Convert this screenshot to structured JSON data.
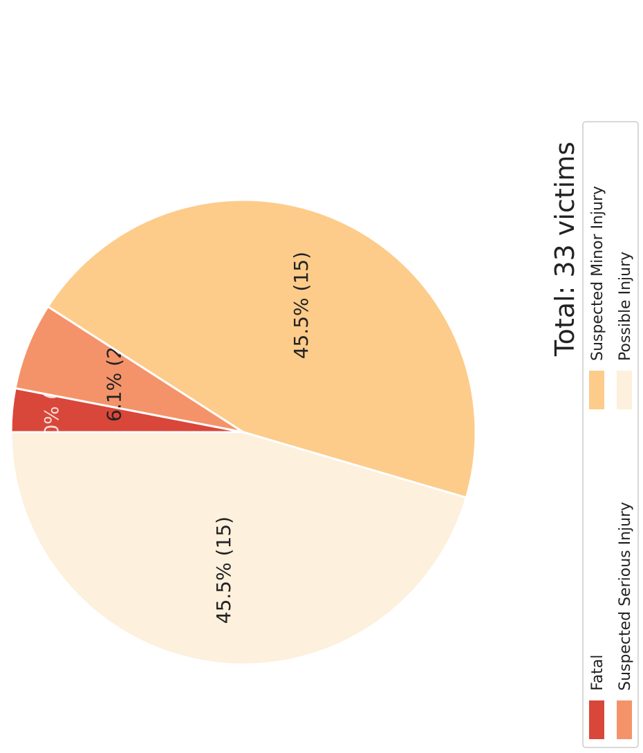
{
  "chart_data": {
    "type": "pie",
    "title": "Total: 33 victims",
    "labels": [
      "Fatal",
      "Suspected Serious Injury",
      "Suspected Minor Injury",
      "Possible Injury"
    ],
    "values": [
      1,
      2,
      15,
      15
    ],
    "percent_labels": [
      "3.0%  (1)",
      "6.1%  (2)",
      "45.5%  (15)",
      "45.5%  (15)"
    ],
    "colors": [
      "#d9473a",
      "#f4936a",
      "#fdcc8a",
      "#fdf0dc"
    ],
    "label_colors": [
      "#f5dfd8",
      "#222222",
      "#222222",
      "#222222"
    ],
    "legend": {
      "position": "bottom",
      "items": [
        "Fatal",
        "Suspected Serious Injury",
        "Suspected Minor Injury",
        "Possible Injury"
      ]
    }
  }
}
